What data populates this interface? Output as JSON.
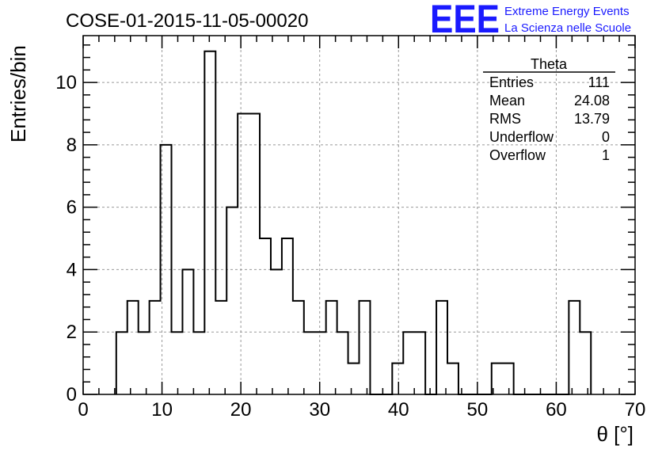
{
  "chart_data": {
    "type": "bar",
    "title": "COSE-01-2015-11-05-00020",
    "xlabel": "θ [°]",
    "ylabel": "Entries/bin",
    "xlim": [
      0,
      70
    ],
    "ylim": [
      0,
      11.5
    ],
    "grid": true,
    "x_ticks": [
      0,
      10,
      20,
      30,
      40,
      50,
      60,
      70
    ],
    "y_ticks": [
      0,
      2,
      4,
      6,
      8,
      10
    ],
    "bin_width": 1.4,
    "bin_edges_start": 4.2,
    "values": [
      2,
      3,
      2,
      3,
      8,
      2,
      4,
      2,
      11,
      3,
      6,
      9,
      9,
      5,
      4,
      5,
      3,
      2,
      2,
      3,
      2,
      1,
      3,
      0,
      0,
      1,
      2,
      2,
      0,
      3,
      1,
      0,
      0,
      0,
      1,
      1,
      0,
      0,
      0,
      0,
      0,
      3,
      2
    ]
  },
  "stats_box": {
    "title": "Theta",
    "rows": [
      {
        "label": "Entries",
        "value": "111"
      },
      {
        "label": "Mean",
        "value": "24.08"
      },
      {
        "label": "RMS",
        "value": "13.79"
      },
      {
        "label": "Underflow",
        "value": "0"
      },
      {
        "label": "Overflow",
        "value": "1"
      }
    ]
  },
  "logo": {
    "letters": "EEE",
    "line1": "Extreme Energy Events",
    "line2": "La Scienza nelle Scuole",
    "color": "#1a1aff"
  }
}
